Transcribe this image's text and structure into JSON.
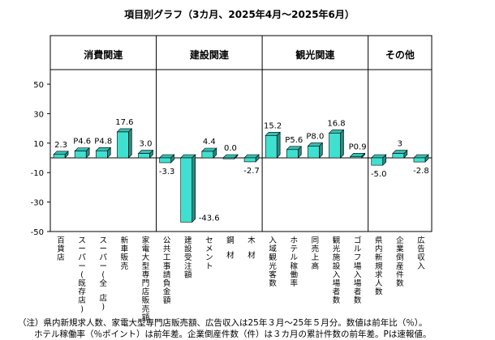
{
  "chart_data": {
    "type": "bar",
    "title": "項目別グラフ（3カ月、2025年4月～2025年6月）",
    "ylim": [
      -50,
      50
    ],
    "yticks": [
      50,
      30,
      10,
      -10,
      -30,
      -50
    ],
    "grid": false,
    "legend": "none",
    "bar_color": "#40e0d0",
    "groups": [
      {
        "label": "消費関連",
        "count": 5
      },
      {
        "label": "建設関連",
        "count": 5
      },
      {
        "label": "観光関連",
        "count": 5
      },
      {
        "label": "その他",
        "count": 3
      }
    ],
    "categories": [
      "百貨店",
      "スーパー(既存店)",
      "スーパー(全 店)",
      "新車販売",
      "家電大型専門店販売額",
      "公共工事請負金額",
      "建設受注額",
      "セメント",
      "鋼 材",
      "木 材",
      "入域観光客数",
      "ホテル稼働率",
      "同売上高",
      "観光施設入場者数",
      "ゴルフ場入場者数",
      "県内新規求人数",
      "企業倒産件数",
      "広告収入"
    ],
    "values": [
      2.3,
      4.6,
      4.8,
      17.6,
      3.0,
      -3.3,
      -43.6,
      4.4,
      0.0,
      -2.7,
      15.2,
      5.6,
      8.0,
      16.8,
      0.9,
      -5.0,
      3,
      -2.8
    ],
    "value_labels": [
      "2.3",
      "P4.6",
      "P4.8",
      "17.6",
      "3.0",
      "-3.3",
      "-43.6",
      "4.4",
      "0.0",
      "-2.7",
      "15.2",
      "P5.6",
      "P8.0",
      "16.8",
      "P0.9",
      "-5.0",
      "3",
      "-2.8"
    ]
  },
  "footnote": {
    "line1": "（注）県内新規求人数、家電大型専門店販売額、広告収入は25年３月～25年５月分。数値は前年比（％）。",
    "line2": "ホテル稼働率（％ポイント）は前年差。企業倒産件数（件）は３カ月の累計件数の前年差。Pは速報値。"
  }
}
